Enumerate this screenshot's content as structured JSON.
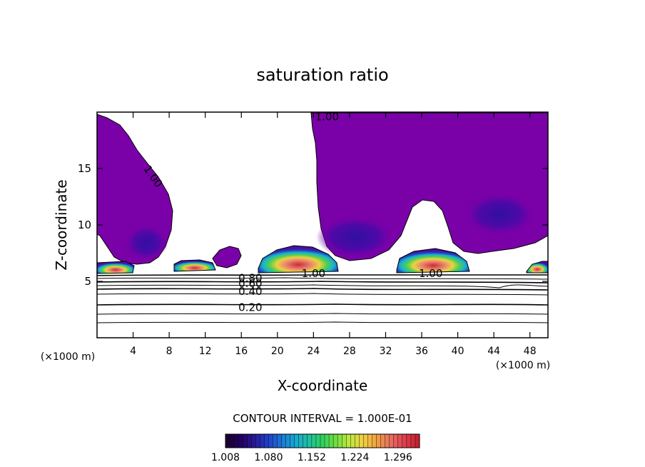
{
  "chart_data": {
    "type": "heatmap",
    "title": "saturation ratio",
    "xlabel": "X-coordinate",
    "ylabel": "Z-coordinate",
    "x_unit_left": "(×1000 m)",
    "x_unit_right": "(×1000 m)",
    "xlim": [
      0,
      50
    ],
    "ylim": [
      0,
      20
    ],
    "xticks": [
      4,
      8,
      12,
      16,
      20,
      24,
      28,
      32,
      36,
      40,
      44,
      48
    ],
    "yticks": [
      5,
      10,
      15
    ],
    "contour_interval_text": "CONTOUR INTERVAL = 1.000E-01",
    "contour_labels": [
      {
        "text": "1.00",
        "x": 25.5,
        "y": 19.6
      },
      {
        "text": "1.00",
        "x": 6.2,
        "y": 14.3
      },
      {
        "text": "1.00",
        "x": 24.0,
        "y": 5.7
      },
      {
        "text": "1.00",
        "x": 37.0,
        "y": 5.7
      },
      {
        "text": "0.80",
        "x": 17.0,
        "y": 5.3
      },
      {
        "text": "0.60",
        "x": 17.0,
        "y": 4.8
      },
      {
        "text": "0.40",
        "x": 17.0,
        "y": 4.1
      },
      {
        "text": "0.20",
        "x": 17.0,
        "y": 2.7
      }
    ],
    "colorbar": {
      "min": 1.008,
      "max": 1.332,
      "labels": [
        "1.008",
        "1.080",
        "1.152",
        "1.224",
        "1.296"
      ],
      "colors": [
        "#1a0033",
        "#220066",
        "#2a1a99",
        "#2040c8",
        "#1e78d8",
        "#17a8d0",
        "#20c0a0",
        "#30d060",
        "#70e040",
        "#c0e840",
        "#f0d040",
        "#f0a040",
        "#e87060",
        "#e04050",
        "#c82030"
      ]
    },
    "field_color": "#7a00a8"
  }
}
